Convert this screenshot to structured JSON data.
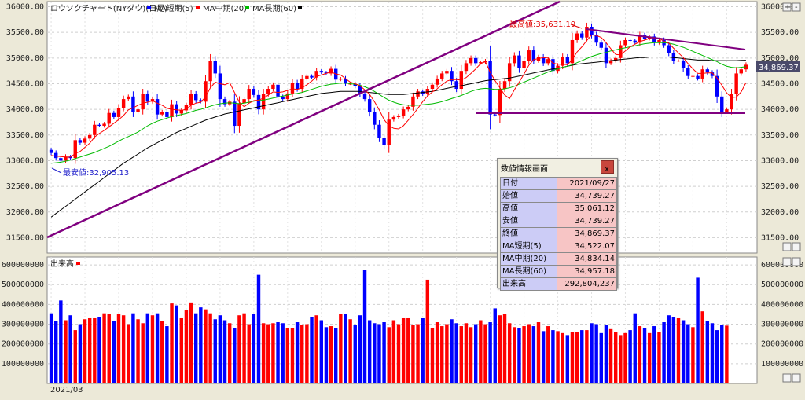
{
  "header": {
    "title": "ロウソクチャート(NYダウ)(日足)",
    "ma_short_label": "MA短期(5)",
    "ma_mid_label": "MA中期(20)",
    "ma_long_label": "MA長期(60)",
    "volume_label": "出来高",
    "date_label": "2021/03"
  },
  "colors": {
    "up": "#ff0000",
    "down": "#0000ff",
    "ma_short": "#ff0000",
    "ma_mid": "#00bb00",
    "ma_long": "#000000",
    "trendline": "#800080",
    "price_tag": "#4a4a6a"
  },
  "chart_data": [
    {
      "type": "candlestick",
      "title": "ロウソクチャート(NYダウ)(日足)",
      "ylim": [
        31200,
        36100
      ],
      "yticks": [
        "31500.00",
        "32000.00",
        "32500.00",
        "33000.00",
        "33500.00",
        "34000.00",
        "34500.00",
        "35000.00",
        "35500.00",
        "36000.00"
      ],
      "grid": true,
      "annotations": {
        "high": "最高値:35,631.19",
        "low": "最安値:32,905.13",
        "last_price": "34,869.37"
      },
      "closes": [
        33150,
        33050,
        33000,
        33080,
        33050,
        33400,
        33350,
        33430,
        33500,
        33700,
        33680,
        33720,
        33930,
        33850,
        34030,
        34200,
        34250,
        33950,
        34000,
        34300,
        34150,
        34200,
        33900,
        33950,
        33850,
        34100,
        33920,
        33980,
        34080,
        34300,
        34180,
        34150,
        34550,
        34950,
        34700,
        34200,
        34100,
        34150,
        33680,
        34120,
        34200,
        34400,
        34280,
        34000,
        34300,
        34400,
        34480,
        34250,
        34200,
        34310,
        34520,
        34400,
        34600,
        34650,
        34620,
        34750,
        34720,
        34700,
        34790,
        34580,
        34600,
        34500,
        34500,
        34450,
        34300,
        34200,
        33950,
        33700,
        33450,
        33300,
        33800,
        33850,
        33880,
        34000,
        34050,
        34250,
        34350,
        34300,
        34400,
        34480,
        34600,
        34700,
        34750,
        34550,
        34400,
        34750,
        34900,
        35000,
        34900,
        34920,
        34950,
        33900,
        33890,
        34400,
        34550,
        34900,
        35050,
        34800,
        34950,
        35150,
        34950,
        35020,
        34900,
        34980,
        34750,
        34850,
        35020,
        34900,
        35350,
        35480,
        35400,
        35610,
        35450,
        35300,
        35200,
        34900,
        34950,
        35000,
        35250,
        35350,
        35340,
        35300,
        35450,
        35380,
        35420,
        35300,
        35350,
        35250,
        35100,
        34950,
        34950,
        34800,
        34650,
        34650,
        34600,
        34780,
        34720,
        34650,
        34250,
        33950,
        34000,
        34300,
        34700,
        34780,
        34869
      ],
      "ma_short": [
        33100,
        33090,
        33080,
        33070,
        33070,
        33140,
        33180,
        33260,
        33340,
        33460,
        33530,
        33590,
        33660,
        33730,
        33800,
        33880,
        33990,
        34030,
        34080,
        34120,
        34140,
        34170,
        34120,
        34080,
        34020,
        34000,
        33990,
        33980,
        34000,
        34080,
        34120,
        34140,
        34240,
        34420,
        34530,
        34500,
        34480,
        34520,
        34330,
        34140,
        34050,
        34120,
        34170,
        34180,
        34220,
        34280,
        34340,
        34330,
        34340,
        34370,
        34400,
        34390,
        34420,
        34480,
        34550,
        34640,
        34670,
        34700,
        34730,
        34690,
        34670,
        34600,
        34530,
        34500,
        34460,
        34380,
        34290,
        34150,
        33990,
        33800,
        33680,
        33630,
        33620,
        33680,
        33790,
        33900,
        34020,
        34150,
        34260,
        34340,
        34400,
        34480,
        34550,
        34580,
        34580,
        34570,
        34620,
        34700,
        34790,
        34890,
        34930,
        34720,
        34560,
        34420,
        34280,
        34210,
        34380,
        34530,
        34690,
        34860,
        34970,
        34990,
        35010,
        35000,
        34900,
        34880,
        34880,
        34870,
        34970,
        35120,
        35220,
        35340,
        35450,
        35440,
        35400,
        35300,
        35180,
        35070,
        35060,
        35140,
        35220,
        35270,
        35320,
        35350,
        35380,
        35370,
        35380,
        35330,
        35290,
        35190,
        35100,
        35010,
        34890,
        34790,
        34700,
        34700,
        34710,
        34710,
        34610,
        34470,
        34320,
        34230,
        34240,
        34340,
        34522
      ],
      "ma_mid": [
        32950,
        32960,
        32970,
        32990,
        33010,
        33040,
        33070,
        33100,
        33130,
        33160,
        33200,
        33240,
        33280,
        33330,
        33380,
        33430,
        33470,
        33510,
        33560,
        33620,
        33680,
        33730,
        33770,
        33800,
        33830,
        33860,
        33880,
        33900,
        33920,
        33950,
        33980,
        34000,
        34030,
        34060,
        34090,
        34110,
        34120,
        34130,
        34120,
        34110,
        34120,
        34140,
        34160,
        34170,
        34180,
        34200,
        34220,
        34240,
        34260,
        34280,
        34300,
        34310,
        34330,
        34360,
        34390,
        34420,
        34450,
        34470,
        34490,
        34500,
        34510,
        34510,
        34500,
        34490,
        34470,
        34440,
        34400,
        34350,
        34290,
        34230,
        34180,
        34140,
        34110,
        34090,
        34080,
        34080,
        34080,
        34090,
        34100,
        34110,
        34130,
        34150,
        34180,
        34210,
        34240,
        34270,
        34310,
        34350,
        34380,
        34400,
        34410,
        34400,
        34390,
        34390,
        34400,
        34420,
        34450,
        34490,
        34530,
        34570,
        34610,
        34650,
        34690,
        34730,
        34760,
        34790,
        34820,
        34840,
        34870,
        34910,
        34950,
        34990,
        35030,
        35060,
        35090,
        35110,
        35140,
        35160,
        35180,
        35200,
        35220,
        35240,
        35260,
        35280,
        35290,
        35300,
        35300,
        35300,
        35290,
        35270,
        35240,
        35210,
        35170,
        35130,
        35090,
        35050,
        35010,
        34970,
        34930,
        34880,
        34840,
        34820,
        34810,
        34820,
        34834
      ],
      "ma_long": [
        31900,
        31970,
        32040,
        32110,
        32180,
        32250,
        32320,
        32390,
        32460,
        32530,
        32600,
        32670,
        32740,
        32810,
        32880,
        32950,
        33010,
        33070,
        33130,
        33190,
        33250,
        33300,
        33350,
        33400,
        33450,
        33500,
        33550,
        33590,
        33630,
        33670,
        33710,
        33750,
        33790,
        33820,
        33850,
        33880,
        33910,
        33930,
        33950,
        33970,
        33990,
        34010,
        34030,
        34050,
        34070,
        34090,
        34110,
        34130,
        34150,
        34170,
        34190,
        34210,
        34230,
        34250,
        34270,
        34290,
        34310,
        34320,
        34330,
        34340,
        34350,
        34350,
        34350,
        34350,
        34350,
        34340,
        34330,
        34320,
        34310,
        34300,
        34290,
        34290,
        34290,
        34290,
        34300,
        34310,
        34320,
        34330,
        34340,
        34350,
        34370,
        34390,
        34410,
        34430,
        34450,
        34460,
        34480,
        34500,
        34520,
        34540,
        34560,
        34570,
        34580,
        34590,
        34600,
        34610,
        34630,
        34650,
        34670,
        34690,
        34710,
        34730,
        34750,
        34770,
        34790,
        34800,
        34820,
        34840,
        34860,
        34880,
        34890,
        34900,
        34910,
        34920,
        34930,
        34940,
        34950,
        34960,
        34970,
        34980,
        34990,
        35000,
        35010,
        35010,
        35020,
        35020,
        35020,
        35020,
        35020,
        35010,
        35000,
        34990,
        34980,
        34970,
        34960,
        34960,
        34960,
        34950,
        34950,
        34950,
        34950,
        34950,
        34950,
        34955,
        34957
      ]
    },
    {
      "type": "bar",
      "title": "出来高",
      "ylim": [
        0,
        640000000
      ],
      "yticks": [
        "100000000",
        "200000000",
        "300000000",
        "400000000",
        "500000000",
        "600000000"
      ],
      "grid": true,
      "values": [
        355,
        315,
        420,
        320,
        345,
        270,
        300,
        325,
        330,
        330,
        335,
        355,
        350,
        315,
        350,
        345,
        300,
        355,
        325,
        305,
        355,
        345,
        355,
        315,
        290,
        405,
        395,
        330,
        370,
        410,
        355,
        385,
        375,
        355,
        325,
        345,
        320,
        305,
        280,
        345,
        355,
        300,
        350,
        550,
        305,
        300,
        305,
        310,
        305,
        280,
        280,
        310,
        295,
        300,
        335,
        345,
        320,
        285,
        290,
        280,
        350,
        350,
        325,
        295,
        345,
        575,
        320,
        305,
        300,
        310,
        285,
        320,
        300,
        330,
        330,
        295,
        300,
        330,
        525,
        280,
        310,
        290,
        300,
        325,
        305,
        290,
        305,
        285,
        300,
        320,
        300,
        310,
        380,
        345,
        350,
        305,
        285,
        280,
        290,
        300,
        290,
        310,
        265,
        290,
        270,
        265,
        255,
        245,
        260,
        260,
        270,
        270,
        305,
        300,
        255,
        295,
        275,
        260,
        245,
        255,
        270,
        355,
        290,
        280,
        255,
        290,
        260,
        310,
        345,
        335,
        330,
        320,
        300,
        285,
        535,
        365,
        315,
        305,
        270,
        295,
        292.8
      ],
      "unit": "1e6 shares"
    }
  ],
  "info_panel": {
    "title": "数値情報画面",
    "close_label": "x",
    "rows": [
      {
        "label": "日付",
        "value": "2021/09/27"
      },
      {
        "label": "始値",
        "value": "34,739.27"
      },
      {
        "label": "高値",
        "value": "35,061.12"
      },
      {
        "label": "安値",
        "value": "34,739.27"
      },
      {
        "label": "終値",
        "value": "34,869.37"
      },
      {
        "label": "MA短期(5)",
        "value": "34,522.07"
      },
      {
        "label": "MA中期(20)",
        "value": "34,834.14"
      },
      {
        "label": "MA長期(60)",
        "value": "34,957.18"
      },
      {
        "label": "出来高",
        "value": "292,804,237"
      }
    ]
  }
}
